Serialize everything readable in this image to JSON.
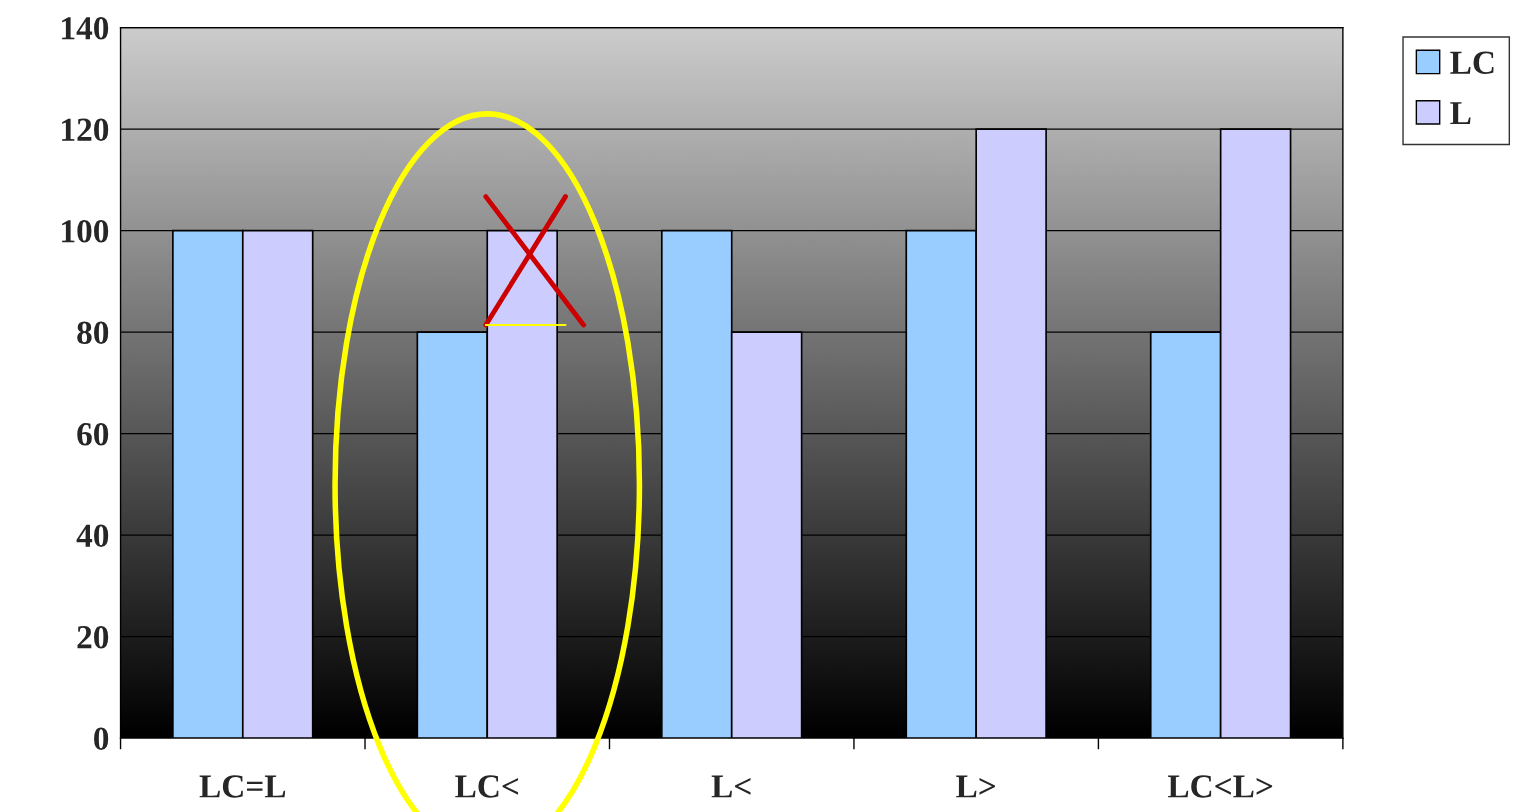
{
  "chart_data": {
    "type": "bar",
    "categories": [
      "LC=L",
      "LC<",
      "L<",
      "L>",
      "LC<L>"
    ],
    "series": [
      {
        "name": "LC",
        "color": "#99ccff",
        "values": [
          100,
          80,
          100,
          100,
          80
        ]
      },
      {
        "name": "L",
        "color": "#ccccff",
        "values": [
          100,
          100,
          80,
          120,
          120
        ]
      }
    ],
    "ylim": [
      0,
      140
    ],
    "yticks": [
      0,
      20,
      40,
      60,
      80,
      100,
      120,
      140
    ],
    "grid": "y",
    "legend": "top right"
  }
}
